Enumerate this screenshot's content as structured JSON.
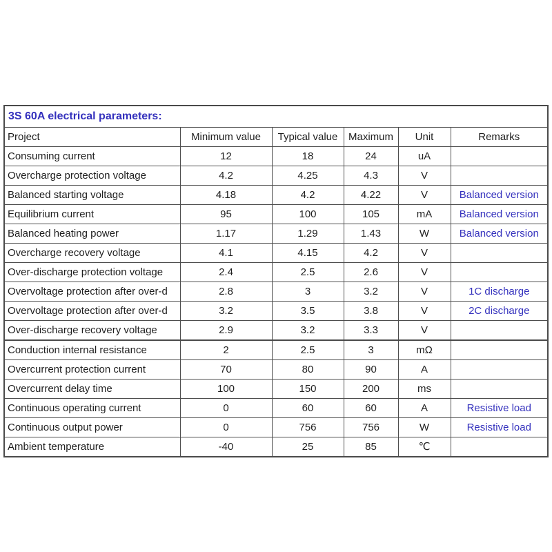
{
  "colors": {
    "accent_blue": "#3431bd",
    "text": "#1f1f1f",
    "border": "#4d4d4d",
    "background": "#ffffff"
  },
  "table": {
    "title": "3S 60A electrical parameters:",
    "columns": [
      "Project",
      "Minimum value",
      "Typical value",
      "Maximum",
      "Unit",
      "Remarks"
    ],
    "rows": [
      {
        "cells": [
          "Consuming current",
          "12",
          "18",
          "24",
          "uA",
          ""
        ]
      },
      {
        "cells": [
          "Overcharge protection voltage",
          "4.2",
          "4.25",
          "4.3",
          "V",
          ""
        ]
      },
      {
        "cells": [
          "Balanced starting voltage",
          "4.18",
          "4.2",
          "4.22",
          "V",
          "Balanced version"
        ]
      },
      {
        "cells": [
          "Equilibrium current",
          "95",
          "100",
          "105",
          "mA",
          "Balanced version"
        ]
      },
      {
        "cells": [
          "Balanced heating power",
          "1.17",
          "1.29",
          "1.43",
          "W",
          "Balanced version"
        ]
      },
      {
        "cells": [
          "Overcharge recovery voltage",
          "4.1",
          "4.15",
          "4.2",
          "V",
          ""
        ]
      },
      {
        "cells": [
          "Over-discharge protection voltage",
          "2.4",
          "2.5",
          "2.6",
          "V",
          ""
        ]
      },
      {
        "cells": [
          "Overvoltage protection after over-d",
          "2.8",
          "3",
          "3.2",
          "V",
          "1C discharge"
        ]
      },
      {
        "cells": [
          "Overvoltage protection after over-d",
          "3.2",
          "3.5",
          "3.8",
          "V",
          "2C discharge"
        ]
      },
      {
        "cells": [
          "Over-discharge recovery voltage",
          "2.9",
          "3.2",
          "3.3",
          "V",
          ""
        ]
      },
      {
        "cells": [
          "Conduction internal resistance",
          "2",
          "2.5",
          "3",
          "mΩ",
          ""
        ],
        "thick_top": true
      },
      {
        "cells": [
          "Overcurrent protection current",
          "70",
          "80",
          "90",
          "A",
          ""
        ]
      },
      {
        "cells": [
          "Overcurrent delay time",
          "100",
          "150",
          "200",
          "ms",
          ""
        ]
      },
      {
        "cells": [
          "Continuous operating current",
          "0",
          "60",
          "60",
          "A",
          "Resistive load"
        ]
      },
      {
        "cells": [
          "Continuous output power",
          "0",
          "756",
          "756",
          "W",
          "Resistive load"
        ]
      },
      {
        "cells": [
          "Ambient temperature",
          "-40",
          "25",
          "85",
          "℃",
          ""
        ]
      }
    ]
  }
}
